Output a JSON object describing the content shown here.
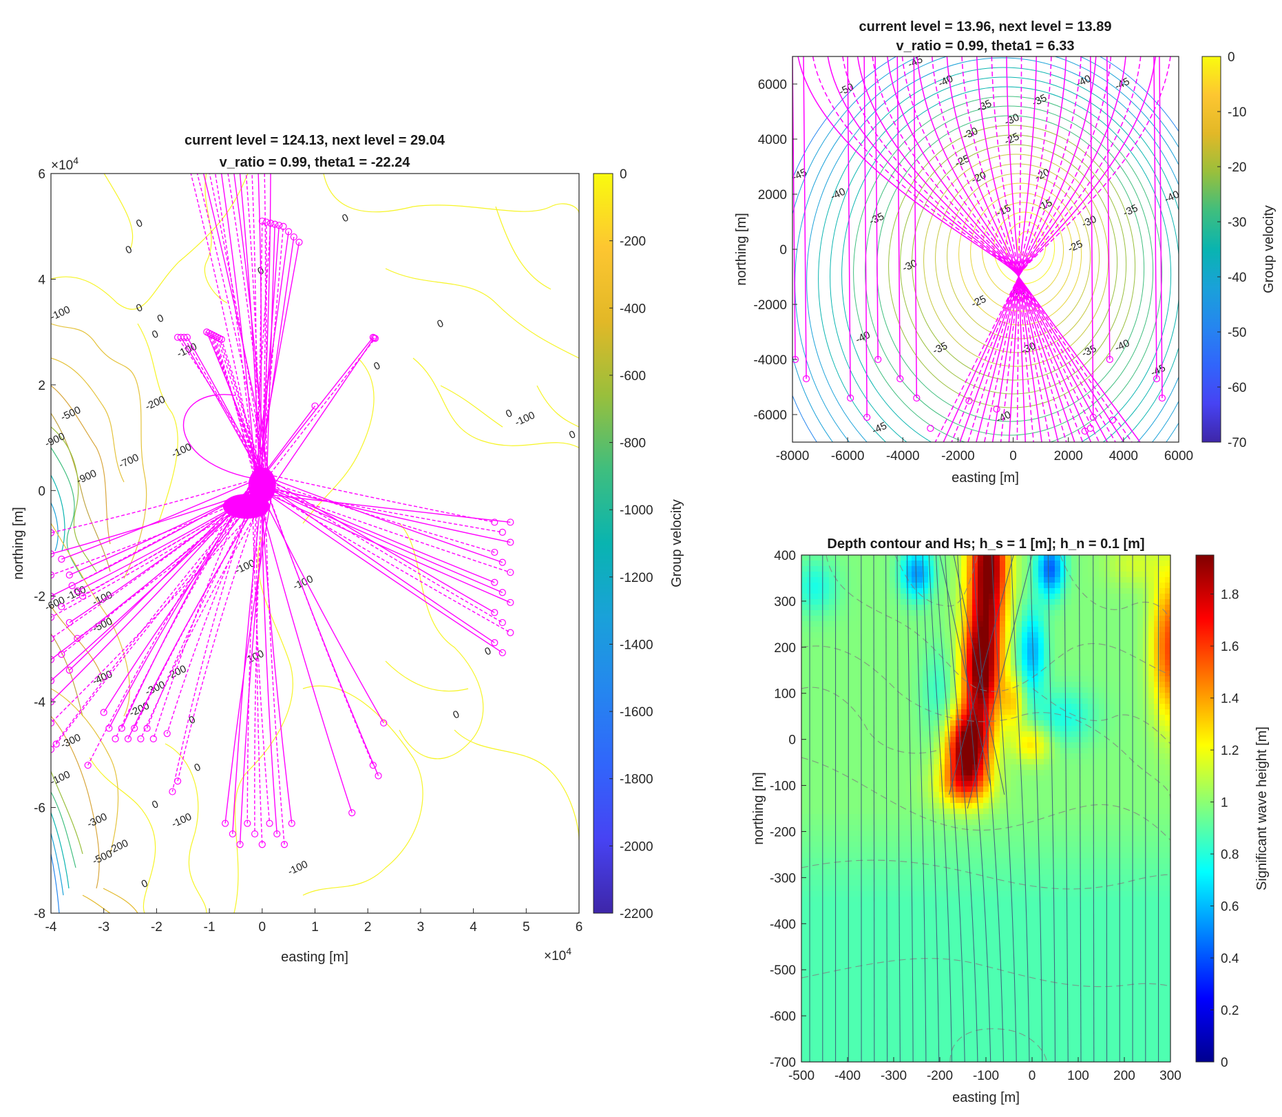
{
  "chart_data": [
    {
      "type": "contour",
      "title_lines": [
        "current level = 124.13, next level = 29.04",
        "v_ratio = 0.99, theta1 = -22.24"
      ],
      "xlabel": "easting [m]",
      "ylabel": "northing [m]",
      "xlim": [
        -4,
        6
      ],
      "ylim": [
        -8,
        6
      ],
      "xticks": [
        "-4",
        "-3",
        "-2",
        "-1",
        "0",
        "1",
        "2",
        "3",
        "4",
        "5",
        "6"
      ],
      "yticks": [
        "-8",
        "-6",
        "-4",
        "-2",
        "0",
        "2",
        "4",
        "6"
      ],
      "x_multiplier": "×10",
      "y_multiplier": "×10",
      "multiplier_exponent": "4",
      "colorbar_label": "Group velocity",
      "colorbar_ticks": [
        "0",
        "-200",
        "-400",
        "-600",
        "-800",
        "-1000",
        "-1200",
        "-1400",
        "-1600",
        "-1800",
        "-2000",
        "-2200"
      ],
      "colorbar_range": [
        -2200,
        0
      ],
      "ray_color": "#ff00ff",
      "contour_labels": [
        {
          "text": "0",
          "x": 0.0,
          "y": 4.1
        },
        {
          "text": "0",
          "x": 1.6,
          "y": 5.1
        },
        {
          "text": "0",
          "x": -2.3,
          "y": 5.0
        },
        {
          "text": "0",
          "x": -2.5,
          "y": 4.5
        },
        {
          "text": "0",
          "x": -2.3,
          "y": 3.4
        },
        {
          "text": "0",
          "x": -1.9,
          "y": 3.2
        },
        {
          "text": "0",
          "x": -2.0,
          "y": 2.9
        },
        {
          "text": "0",
          "x": 3.4,
          "y": 3.1
        },
        {
          "text": "0",
          "x": 2.2,
          "y": 2.3
        },
        {
          "text": "0",
          "x": 4.7,
          "y": 1.4
        },
        {
          "text": "0",
          "x": 5.9,
          "y": 1.0
        },
        {
          "text": "0",
          "x": 4.3,
          "y": -3.1
        },
        {
          "text": "0",
          "x": 3.7,
          "y": -4.3
        },
        {
          "text": "0",
          "x": -1.3,
          "y": -4.4
        },
        {
          "text": "0",
          "x": -1.2,
          "y": -5.3
        },
        {
          "text": "0",
          "x": -2.0,
          "y": -6.0
        },
        {
          "text": "0",
          "x": -2.2,
          "y": -7.5
        },
        {
          "text": "-100",
          "x": -3.8,
          "y": 3.3
        },
        {
          "text": "-100",
          "x": -1.4,
          "y": 2.6
        },
        {
          "text": "-100",
          "x": -1.5,
          "y": 0.7
        },
        {
          "text": "-100",
          "x": 5.0,
          "y": 1.3
        },
        {
          "text": "-100",
          "x": 0.8,
          "y": -1.8
        },
        {
          "text": "-100",
          "x": -0.3,
          "y": -1.5
        },
        {
          "text": "100",
          "x": -0.1,
          "y": -3.2
        },
        {
          "text": "-100",
          "x": -3.5,
          "y": -2.0
        },
        {
          "text": "-100",
          "x": -3.0,
          "y": -2.1
        },
        {
          "text": "-100",
          "x": -1.5,
          "y": -6.3
        },
        {
          "text": "-100",
          "x": 0.7,
          "y": -7.2
        },
        {
          "text": "-100",
          "x": -3.8,
          "y": -5.5
        },
        {
          "text": "-200",
          "x": -2.0,
          "y": 1.6
        },
        {
          "text": "-200",
          "x": -1.6,
          "y": -3.5
        },
        {
          "text": "-200",
          "x": -2.3,
          "y": -4.2
        },
        {
          "text": "-200",
          "x": -2.7,
          "y": -6.8
        },
        {
          "text": "-300",
          "x": -2.0,
          "y": -3.8
        },
        {
          "text": "-300",
          "x": -3.6,
          "y": -4.8
        },
        {
          "text": "-300",
          "x": -3.1,
          "y": -6.3
        },
        {
          "text": "-400",
          "x": -3.0,
          "y": -3.6
        },
        {
          "text": "-500",
          "x": -3.6,
          "y": 1.4
        },
        {
          "text": "-500",
          "x": -3.0,
          "y": -2.6
        },
        {
          "text": "-500",
          "x": -3.0,
          "y": -7.0
        },
        {
          "text": "-600",
          "x": -3.9,
          "y": -2.2
        },
        {
          "text": "-700",
          "x": -2.5,
          "y": 0.5
        },
        {
          "text": "-900",
          "x": -3.3,
          "y": 0.2
        },
        {
          "text": "-900",
          "x": -3.9,
          "y": 0.9
        }
      ]
    },
    {
      "type": "contour",
      "title_lines": [
        "current level = 13.96, next level = 13.89",
        "v_ratio = 0.99, theta1 = 6.33"
      ],
      "xlabel": "easting [m]",
      "ylabel": "northing [m]",
      "xlim": [
        -8000,
        6000
      ],
      "ylim": [
        -7000,
        7000
      ],
      "xticks": [
        "-8000",
        "-6000",
        "-4000",
        "-2000",
        "0",
        "2000",
        "4000",
        "6000"
      ],
      "yticks": [
        "-6000",
        "-4000",
        "-2000",
        "0",
        "2000",
        "4000",
        "6000"
      ],
      "colorbar_label": "Group velocity",
      "colorbar_ticks": [
        "0",
        "-10",
        "-20",
        "-30",
        "-40",
        "-50",
        "-60",
        "-70"
      ],
      "colorbar_range": [
        -70,
        0
      ],
      "ray_color": "#ff00ff",
      "contour_labels": [
        {
          "text": "-45",
          "x": -3500,
          "y": 6700
        },
        {
          "text": "-50",
          "x": -6000,
          "y": 5700
        },
        {
          "text": "-40",
          "x": -2400,
          "y": 6000
        },
        {
          "text": "-40",
          "x": 2600,
          "y": 6000
        },
        {
          "text": "-45",
          "x": 4000,
          "y": 5900
        },
        {
          "text": "-35",
          "x": -1000,
          "y": 5100
        },
        {
          "text": "-35",
          "x": 1000,
          "y": 5300
        },
        {
          "text": "-30",
          "x": 0,
          "y": 4600
        },
        {
          "text": "-30",
          "x": -1500,
          "y": 4100
        },
        {
          "text": "-25",
          "x": 0,
          "y": 3900
        },
        {
          "text": "-25",
          "x": -1800,
          "y": 3100
        },
        {
          "text": "-20",
          "x": -1200,
          "y": 2500
        },
        {
          "text": "-20",
          "x": 1100,
          "y": 2600
        },
        {
          "text": "-15",
          "x": -300,
          "y": 1300
        },
        {
          "text": "-15",
          "x": 1200,
          "y": 1500
        },
        {
          "text": "-45",
          "x": -7700,
          "y": 2600
        },
        {
          "text": "-40",
          "x": -6300,
          "y": 1900
        },
        {
          "text": "-35",
          "x": -4900,
          "y": 1000
        },
        {
          "text": "-30",
          "x": -3700,
          "y": -700
        },
        {
          "text": "-30",
          "x": 2800,
          "y": 900
        },
        {
          "text": "-35",
          "x": 4300,
          "y": 1300
        },
        {
          "text": "-40",
          "x": 5800,
          "y": 1800
        },
        {
          "text": "-25",
          "x": 2300,
          "y": 0
        },
        {
          "text": "-20",
          "x": 200,
          "y": -1700
        },
        {
          "text": "-25",
          "x": -1200,
          "y": -2000
        },
        {
          "text": "-40",
          "x": -5400,
          "y": -3300
        },
        {
          "text": "-35",
          "x": -2600,
          "y": -3700
        },
        {
          "text": "-30",
          "x": 600,
          "y": -3700
        },
        {
          "text": "-35",
          "x": 2800,
          "y": -3800
        },
        {
          "text": "-40",
          "x": 4000,
          "y": -3600
        },
        {
          "text": "-45",
          "x": 5300,
          "y": -4500
        },
        {
          "text": "-40",
          "x": -300,
          "y": -6200
        },
        {
          "text": "-45",
          "x": -4800,
          "y": -6600
        }
      ]
    },
    {
      "type": "heatmap",
      "title": "Depth contour and Hs; h_s = 1 [m]; h_n = 0.1 [m]",
      "xlabel": "easting [m]",
      "ylabel": "northing [m]",
      "xlim": [
        -500,
        300
      ],
      "ylim": [
        -700,
        400
      ],
      "xticks": [
        "-500",
        "-400",
        "-300",
        "-200",
        "-100",
        "0",
        "100",
        "200",
        "300"
      ],
      "yticks": [
        "-700",
        "-600",
        "-500",
        "-400",
        "-300",
        "-200",
        "-100",
        "0",
        "100",
        "200",
        "300",
        "400"
      ],
      "colorbar_label": "Significant wave height [m]",
      "colorbar_ticks": [
        "0",
        "0.2",
        "0.4",
        "0.6",
        "0.8",
        "1",
        "1.2",
        "1.4",
        "1.6",
        "1.8"
      ],
      "colorbar_range": [
        0,
        1.95
      ],
      "background_value": 0.98,
      "blobs": [
        {
          "x": -95,
          "y": 380,
          "sx": 42,
          "sy": 150,
          "a": 1.0
        },
        {
          "x": -110,
          "y": 150,
          "sx": 42,
          "sy": 130,
          "a": 1.0
        },
        {
          "x": -140,
          "y": -20,
          "sx": 45,
          "sy": 80,
          "a": 1.0
        },
        {
          "x": -150,
          "y": -100,
          "sx": 60,
          "sy": 50,
          "a": 0.4
        },
        {
          "x": -40,
          "y": 80,
          "sx": 25,
          "sy": 60,
          "a": 0.3
        },
        {
          "x": 0,
          "y": -10,
          "sx": 40,
          "sy": 40,
          "a": 0.3
        },
        {
          "x": 300,
          "y": 200,
          "sx": 40,
          "sy": 160,
          "a": 0.6
        },
        {
          "x": 220,
          "y": 380,
          "sx": 60,
          "sy": 50,
          "a": 0.15
        },
        {
          "x": 40,
          "y": 370,
          "sx": 30,
          "sy": 60,
          "a": -0.55
        },
        {
          "x": 0,
          "y": 190,
          "sx": 30,
          "sy": 90,
          "a": -0.4
        },
        {
          "x": 70,
          "y": 50,
          "sx": 70,
          "sy": 60,
          "a": -0.2
        },
        {
          "x": -250,
          "y": 360,
          "sx": 35,
          "sy": 55,
          "a": -0.45
        },
        {
          "x": -470,
          "y": 330,
          "sx": 50,
          "sy": 60,
          "a": -0.2
        },
        {
          "x": -200,
          "y": 100,
          "sx": 40,
          "sy": 100,
          "a": -0.15
        }
      ]
    }
  ]
}
